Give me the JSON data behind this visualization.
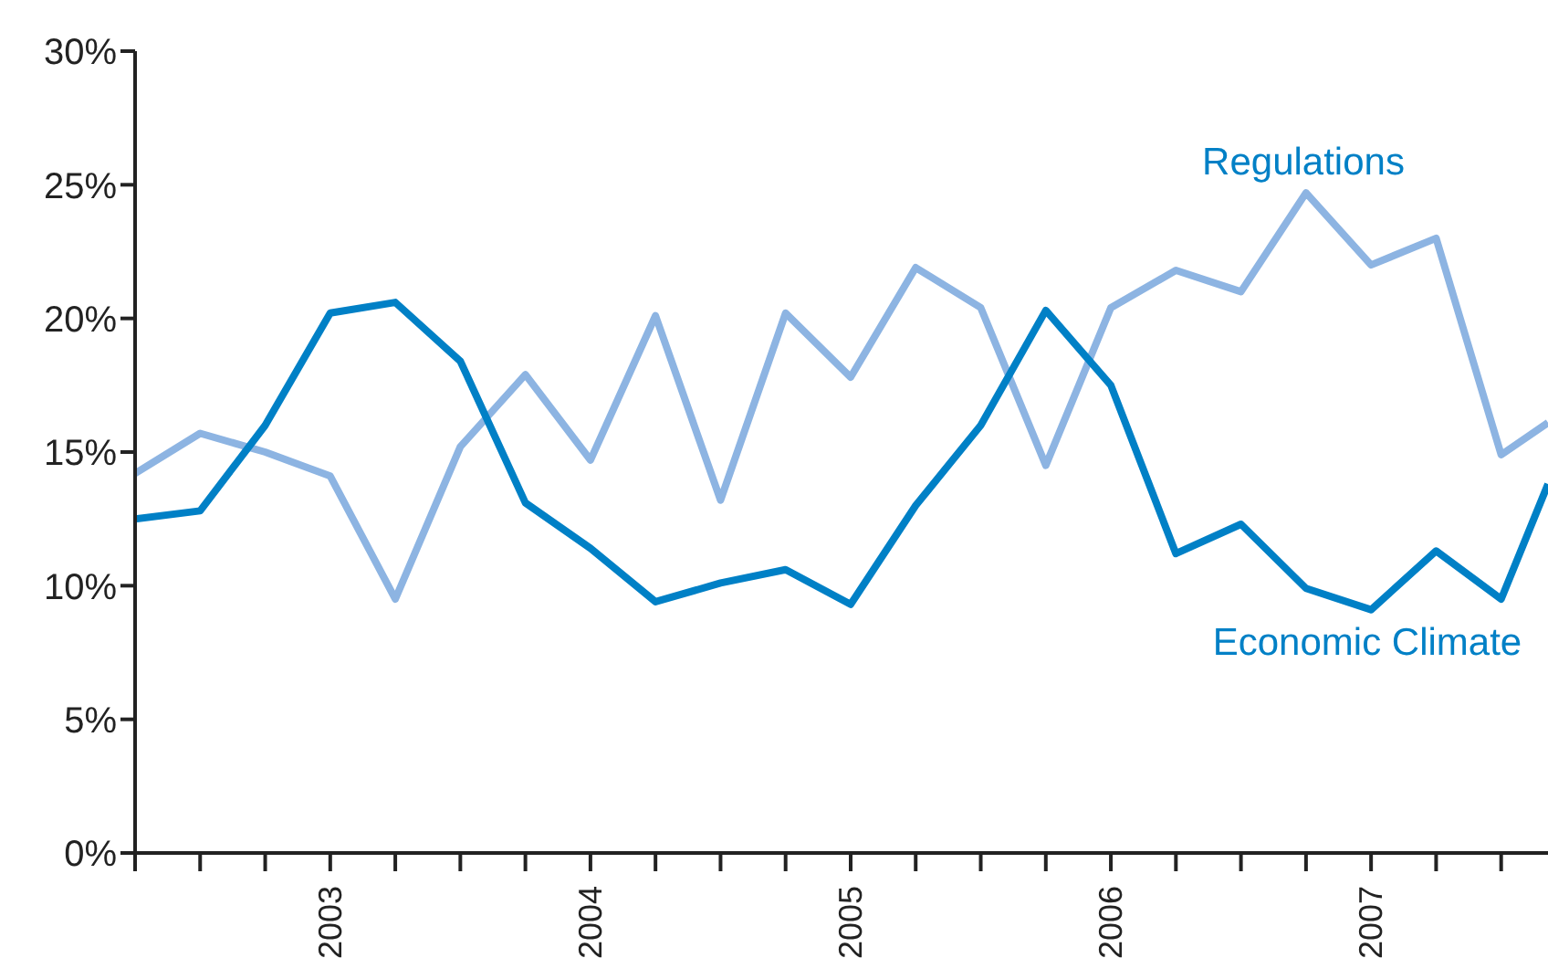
{
  "chart_data": {
    "type": "line",
    "x": [
      2002.25,
      2002.5,
      2002.75,
      2003,
      2003.25,
      2003.5,
      2003.75,
      2004,
      2004.25,
      2004.5,
      2004.75,
      2005,
      2005.25,
      2005.5,
      2005.75,
      2006,
      2006.25,
      2006.5,
      2006.75,
      2007,
      2007.25,
      2007.5,
      2007.68
    ],
    "series": [
      {
        "name": "Regulations",
        "color": "#8db4e2",
        "values": [
          14.2,
          15.7,
          15,
          14.1,
          9.5,
          15.2,
          17.9,
          14.7,
          20.1,
          13.2,
          20.2,
          17.8,
          21.9,
          20.4,
          14.5,
          20.4,
          21.8,
          21,
          24.7,
          22,
          23,
          14.9,
          16.1
        ]
      },
      {
        "name": "Economic Climate",
        "color": "#0080c6",
        "values": [
          12.5,
          12.8,
          16,
          20.2,
          20.6,
          18.4,
          13.1,
          11.4,
          9.4,
          10.1,
          10.6,
          9.3,
          13,
          16,
          20.3,
          17.5,
          11.2,
          12.3,
          9.9,
          9.1,
          11.3,
          9.5,
          13.8
        ]
      }
    ],
    "xlim": [
      2002.25,
      2007.68
    ],
    "xticks": [
      {
        "value": 2002.25,
        "label": null
      },
      {
        "value": 2002.5,
        "label": null
      },
      {
        "value": 2002.75,
        "label": null
      },
      2003,
      {
        "value": 2003.25,
        "label": null
      },
      {
        "value": 2003.5,
        "label": null
      },
      {
        "value": 2003.75,
        "label": null
      },
      2004,
      {
        "value": 2004.25,
        "label": null
      },
      {
        "value": 2004.5,
        "label": null
      },
      {
        "value": 2004.75,
        "label": null
      },
      2005,
      {
        "value": 2005.25,
        "label": null
      },
      {
        "value": 2005.5,
        "label": null
      },
      {
        "value": 2005.75,
        "label": null
      },
      2006,
      {
        "value": 2006.25,
        "label": null
      },
      {
        "value": 2006.5,
        "label": null
      },
      {
        "value": 2006.75,
        "label": null
      },
      2007,
      {
        "value": 2007.25,
        "label": null
      },
      {
        "value": 2007.5,
        "label": null
      }
    ],
    "ylim": [
      0,
      30
    ],
    "yticks": [
      {
        "value": 0,
        "label": "0%"
      },
      {
        "value": 5,
        "label": "5%"
      },
      {
        "value": 10,
        "label": "10%"
      },
      {
        "value": 15,
        "label": "15%"
      },
      {
        "value": 20,
        "label": "20%"
      },
      {
        "value": 25,
        "label": "25%"
      },
      {
        "value": 30,
        "label": "30%"
      }
    ],
    "grid": false,
    "legend": false,
    "marker": "none",
    "line_style": "solid"
  }
}
